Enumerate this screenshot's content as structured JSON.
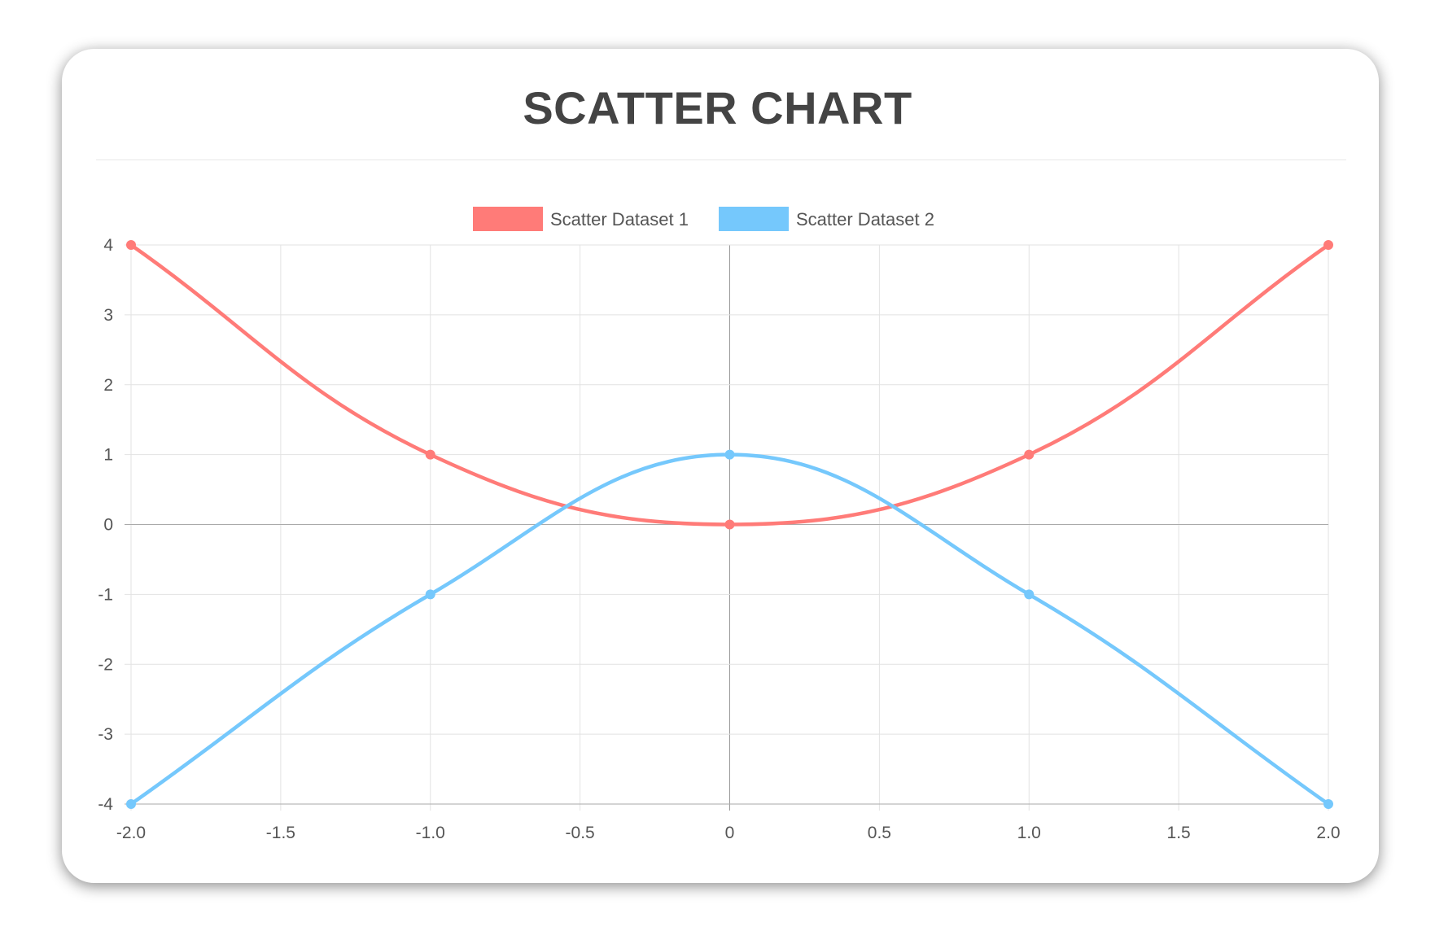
{
  "chart_data": {
    "type": "scatter",
    "title": "SCATTER CHART",
    "xlabel": "",
    "ylabel": "",
    "xlim": [
      -2,
      2
    ],
    "ylim": [
      -4,
      4
    ],
    "x_ticks": [
      "-2.0",
      "-1.5",
      "-1.0",
      "-0.5",
      "0",
      "0.5",
      "1.0",
      "1.5",
      "2.0"
    ],
    "y_ticks": [
      "4",
      "3",
      "2",
      "1",
      "0",
      "-1",
      "-2",
      "-3",
      "-4"
    ],
    "grid": true,
    "legend_position": "top",
    "show_line": true,
    "series": [
      {
        "name": "Scatter Dataset 1",
        "color": "#ff7b78",
        "points": [
          {
            "x": -2,
            "y": 4
          },
          {
            "x": -1,
            "y": 1
          },
          {
            "x": 0,
            "y": 0
          },
          {
            "x": 1,
            "y": 1
          },
          {
            "x": 2,
            "y": 4
          }
        ]
      },
      {
        "name": "Scatter Dataset 2",
        "color": "#75c8fc",
        "points": [
          {
            "x": -2,
            "y": -4
          },
          {
            "x": -1,
            "y": -1
          },
          {
            "x": 0,
            "y": 1
          },
          {
            "x": 1,
            "y": -1
          },
          {
            "x": 2,
            "y": -4
          }
        ]
      }
    ]
  }
}
